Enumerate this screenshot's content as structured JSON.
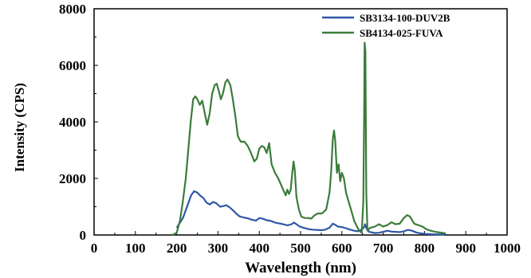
{
  "chart_data": {
    "type": "line",
    "xlabel": "Wavelength (nm)",
    "ylabel": "Intensity (CPS)",
    "xlim": [
      0,
      1000
    ],
    "ylim": [
      0,
      8000
    ],
    "x_ticks": [
      "0",
      "100",
      "200",
      "300",
      "400",
      "500",
      "600",
      "700",
      "800",
      "900",
      "1000"
    ],
    "y_ticks": [
      "0",
      "2000",
      "4000",
      "6000",
      "8000"
    ],
    "legend_position": "top-right",
    "series": [
      {
        "name": "SB3134-100-DUV2B",
        "color": "#2f57a6",
        "points": [
          [
            200,
            250
          ],
          [
            215,
            600
          ],
          [
            225,
            1000
          ],
          [
            235,
            1400
          ],
          [
            242,
            1550
          ],
          [
            250,
            1500
          ],
          [
            258,
            1380
          ],
          [
            265,
            1300
          ],
          [
            272,
            1150
          ],
          [
            280,
            1080
          ],
          [
            288,
            1170
          ],
          [
            296,
            1120
          ],
          [
            305,
            1000
          ],
          [
            312,
            1020
          ],
          [
            320,
            1050
          ],
          [
            328,
            980
          ],
          [
            336,
            880
          ],
          [
            344,
            760
          ],
          [
            352,
            660
          ],
          [
            362,
            620
          ],
          [
            372,
            590
          ],
          [
            382,
            540
          ],
          [
            392,
            510
          ],
          [
            400,
            600
          ],
          [
            410,
            570
          ],
          [
            418,
            520
          ],
          [
            428,
            500
          ],
          [
            438,
            440
          ],
          [
            448,
            410
          ],
          [
            458,
            380
          ],
          [
            468,
            340
          ],
          [
            478,
            380
          ],
          [
            484,
            440
          ],
          [
            490,
            380
          ],
          [
            498,
            300
          ],
          [
            508,
            250
          ],
          [
            518,
            210
          ],
          [
            528,
            190
          ],
          [
            540,
            180
          ],
          [
            550,
            170
          ],
          [
            560,
            190
          ],
          [
            570,
            260
          ],
          [
            578,
            400
          ],
          [
            584,
            360
          ],
          [
            590,
            300
          ],
          [
            600,
            280
          ],
          [
            610,
            240
          ],
          [
            620,
            190
          ],
          [
            630,
            150
          ],
          [
            640,
            130
          ],
          [
            648,
            200
          ],
          [
            653,
            260
          ],
          [
            656,
            380
          ],
          [
            660,
            220
          ],
          [
            666,
            110
          ],
          [
            680,
            70
          ],
          [
            690,
            80
          ],
          [
            700,
            110
          ],
          [
            710,
            150
          ],
          [
            720,
            120
          ],
          [
            730,
            110
          ],
          [
            740,
            100
          ],
          [
            750,
            130
          ],
          [
            760,
            180
          ],
          [
            770,
            150
          ],
          [
            780,
            90
          ],
          [
            790,
            60
          ],
          [
            800,
            40
          ],
          [
            820,
            25
          ],
          [
            850,
            15
          ]
        ]
      },
      {
        "name": "SB4134-025-FUVA",
        "color": "#3b7c3b",
        "points": [
          [
            190,
            0
          ],
          [
            200,
            80
          ],
          [
            208,
            500
          ],
          [
            215,
            1200
          ],
          [
            222,
            2000
          ],
          [
            228,
            3000
          ],
          [
            234,
            4000
          ],
          [
            240,
            4800
          ],
          [
            245,
            4900
          ],
          [
            250,
            4800
          ],
          [
            256,
            4600
          ],
          [
            262,
            4750
          ],
          [
            268,
            4300
          ],
          [
            274,
            3900
          ],
          [
            280,
            4300
          ],
          [
            286,
            5000
          ],
          [
            292,
            5300
          ],
          [
            297,
            5350
          ],
          [
            302,
            5100
          ],
          [
            307,
            4800
          ],
          [
            312,
            5000
          ],
          [
            318,
            5400
          ],
          [
            323,
            5500
          ],
          [
            330,
            5300
          ],
          [
            336,
            4800
          ],
          [
            342,
            4200
          ],
          [
            348,
            3500
          ],
          [
            355,
            3300
          ],
          [
            364,
            3300
          ],
          [
            372,
            3150
          ],
          [
            380,
            2900
          ],
          [
            388,
            2600
          ],
          [
            394,
            2700
          ],
          [
            400,
            3050
          ],
          [
            406,
            3150
          ],
          [
            412,
            3100
          ],
          [
            418,
            2900
          ],
          [
            424,
            3250
          ],
          [
            430,
            2500
          ],
          [
            438,
            2200
          ],
          [
            446,
            2000
          ],
          [
            452,
            1800
          ],
          [
            458,
            1600
          ],
          [
            464,
            1400
          ],
          [
            468,
            1600
          ],
          [
            472,
            1450
          ],
          [
            476,
            1600
          ],
          [
            480,
            2200
          ],
          [
            483,
            2600
          ],
          [
            486,
            2300
          ],
          [
            490,
            1350
          ],
          [
            496,
            900
          ],
          [
            502,
            650
          ],
          [
            510,
            600
          ],
          [
            518,
            600
          ],
          [
            526,
            580
          ],
          [
            534,
            700
          ],
          [
            542,
            760
          ],
          [
            552,
            760
          ],
          [
            562,
            900
          ],
          [
            570,
            1500
          ],
          [
            574,
            2200
          ],
          [
            578,
            3400
          ],
          [
            581,
            3700
          ],
          [
            584,
            3300
          ],
          [
            588,
            2200
          ],
          [
            592,
            2500
          ],
          [
            596,
            1900
          ],
          [
            600,
            2200
          ],
          [
            605,
            2000
          ],
          [
            610,
            1500
          ],
          [
            616,
            1200
          ],
          [
            622,
            900
          ],
          [
            630,
            500
          ],
          [
            640,
            200
          ],
          [
            648,
            80
          ],
          [
            652,
            1200
          ],
          [
            654,
            4500
          ],
          [
            655,
            6800
          ],
          [
            657,
            6500
          ],
          [
            659,
            1500
          ],
          [
            662,
            150
          ],
          [
            668,
            250
          ],
          [
            680,
            300
          ],
          [
            690,
            380
          ],
          [
            700,
            300
          ],
          [
            710,
            350
          ],
          [
            720,
            450
          ],
          [
            730,
            380
          ],
          [
            740,
            400
          ],
          [
            750,
            600
          ],
          [
            758,
            700
          ],
          [
            765,
            650
          ],
          [
            775,
            400
          ],
          [
            785,
            350
          ],
          [
            795,
            300
          ],
          [
            805,
            200
          ],
          [
            815,
            150
          ],
          [
            830,
            100
          ],
          [
            850,
            60
          ]
        ]
      }
    ]
  }
}
